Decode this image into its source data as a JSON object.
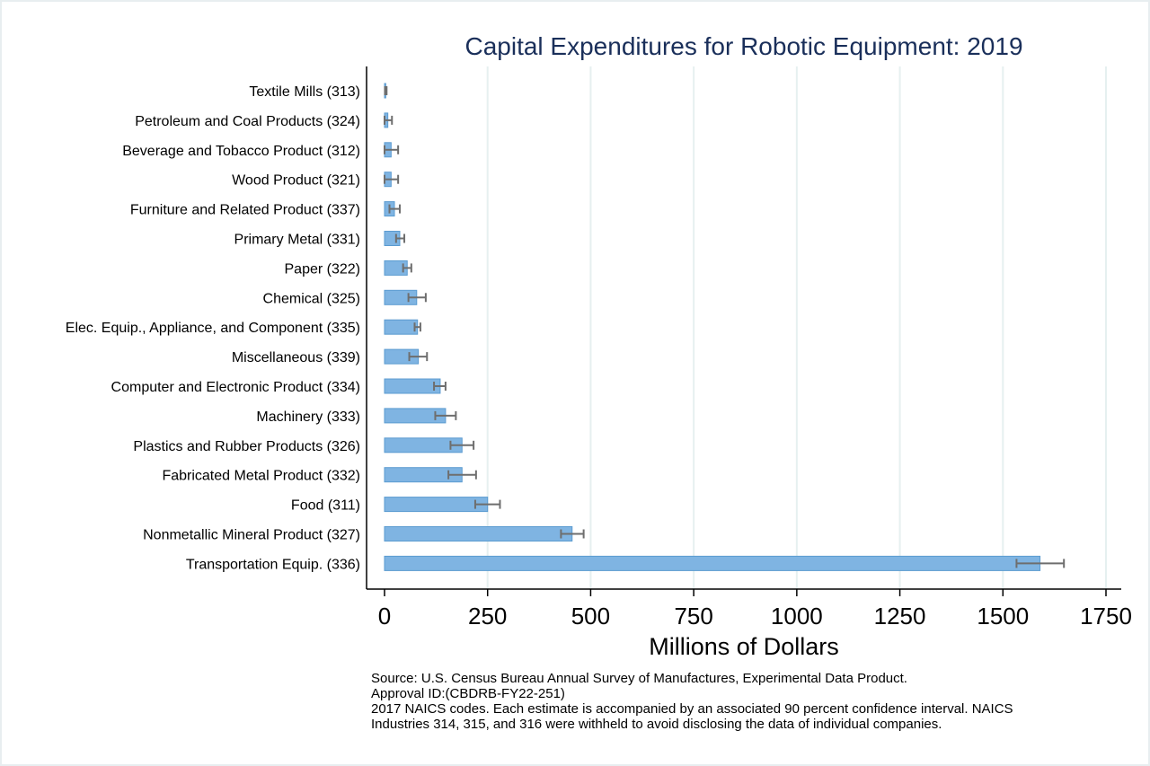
{
  "colors": {
    "bar_fill": "#7fb4e2",
    "bar_stroke": "#5b9bd0",
    "error_bar": "#6e6e6e",
    "grid": "#e6f0f0",
    "title": "#1a2f5a",
    "axis": "#000000"
  },
  "chart_data": {
    "type": "bar",
    "orientation": "horizontal",
    "title": "Capital Expenditures for Robotic Equipment: 2019",
    "xlabel": "Millions of Dollars",
    "ylabel": "",
    "xlim": [
      0,
      1750
    ],
    "xticks": [
      0,
      250,
      500,
      750,
      1000,
      1250,
      1500,
      1750
    ],
    "grid": true,
    "categories": [
      "Textile Mills (313)",
      "Petroleum and Coal Products (324)",
      "Beverage and Tobacco Product (312)",
      "Wood Product (321)",
      "Furniture and Related Product (337)",
      "Primary Metal (331)",
      "Paper (322)",
      "Chemical (325)",
      "Elec. Equip., Appliance, and Component (335)",
      "Miscellaneous (339)",
      "Computer and Electronic Product (334)",
      "Machinery (333)",
      "Plastics and Rubber Products (326)",
      "Fabricated Metal Product (332)",
      "Food (311)",
      "Nonmetallic Mineral Product (327)",
      "Transportation Equip. (336)"
    ],
    "values": [
      3,
      8,
      16,
      16,
      24,
      37,
      55,
      78,
      80,
      82,
      135,
      148,
      188,
      188,
      250,
      455,
      1590
    ],
    "ci_low": [
      1,
      0,
      0,
      0,
      12,
      28,
      45,
      58,
      73,
      60,
      120,
      123,
      160,
      155,
      220,
      428,
      1533
    ],
    "ci_high": [
      5,
      18,
      33,
      33,
      37,
      48,
      65,
      100,
      87,
      103,
      148,
      173,
      216,
      222,
      280,
      483,
      1648
    ],
    "notes": [
      "Source: U.S. Census Bureau Annual Survey of Manufactures, Experimental Data Product.",
      "Approval ID:(CBDRB-FY22-251)",
      "2017 NAICS codes. Each estimate is accompanied by an associated 90 percent confidence interval. NAICS",
      "Industries 314, 315, and 316 were withheld to avoid disclosing the data of individual companies."
    ]
  }
}
